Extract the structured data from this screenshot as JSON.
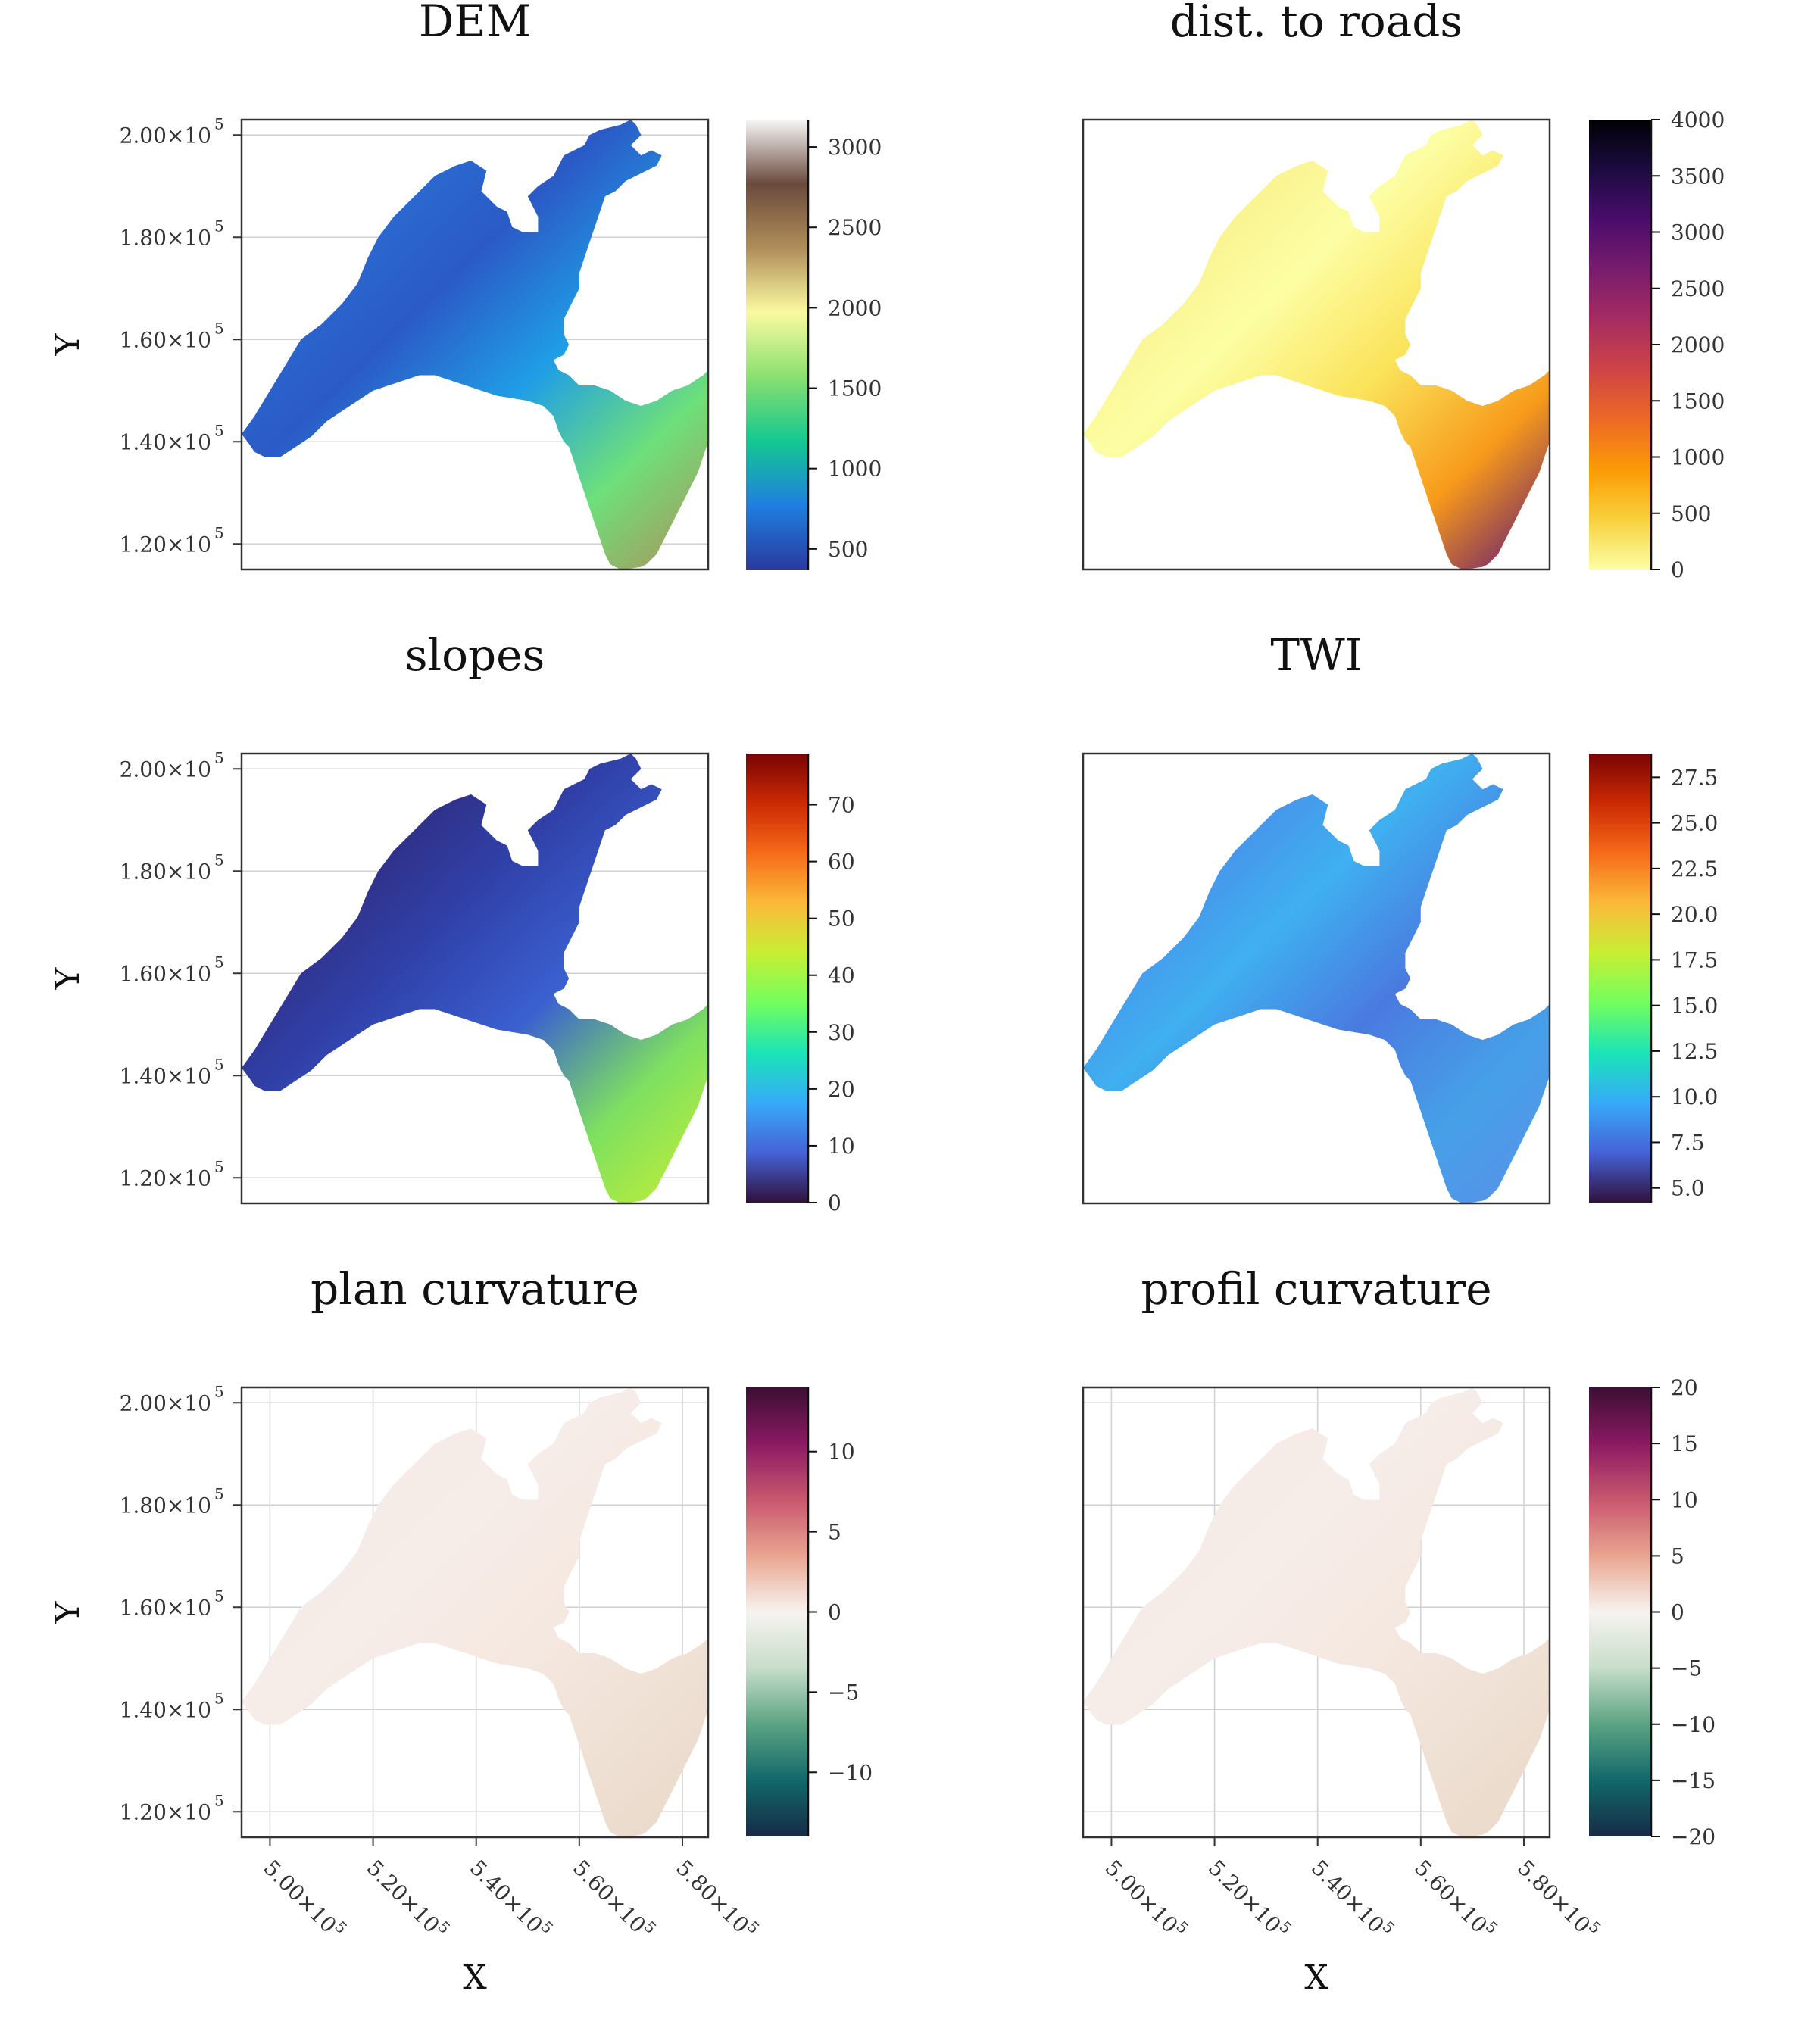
{
  "x_axis": {
    "label": "X",
    "ticks": [
      {
        "value": 500000,
        "label": "5.00×10",
        "exp": "5"
      },
      {
        "value": 520000,
        "label": "5.20×10",
        "exp": "5"
      },
      {
        "value": 540000,
        "label": "5.40×10",
        "exp": "5"
      },
      {
        "value": 560000,
        "label": "5.60×10",
        "exp": "5"
      },
      {
        "value": 580000,
        "label": "5.80×10",
        "exp": "5"
      }
    ],
    "range": [
      494500,
      585000
    ]
  },
  "y_axis": {
    "label": "Y",
    "ticks": [
      {
        "value": 120000,
        "label": "1.20×10",
        "exp": "5"
      },
      {
        "value": 140000,
        "label": "1.40×10",
        "exp": "5"
      },
      {
        "value": 160000,
        "label": "1.60×10",
        "exp": "5"
      },
      {
        "value": 180000,
        "label": "1.80×10",
        "exp": "5"
      },
      {
        "value": 200000,
        "label": "2.00×10",
        "exp": "5"
      }
    ],
    "range": [
      115000,
      203000
    ]
  },
  "chart_data": [
    {
      "type": "heatmap",
      "title": "DEM",
      "colormap": [
        "#2b3a9f",
        "#1f7fe0",
        "#14c890",
        "#8ae070",
        "#fafaa0",
        "#b08e5a",
        "#6a4a3c",
        "#f7f7f7"
      ],
      "colorbar": {
        "range": [
          372,
          3170
        ],
        "ticks": [
          "500",
          "1000",
          "1500",
          "2000",
          "2500",
          "3000"
        ],
        "tick_values": [
          500,
          1000,
          1500,
          2000,
          2500,
          3000
        ]
      },
      "x_ticks_labeled": false,
      "y_ticks_labeled": true,
      "grid": true
    },
    {
      "type": "heatmap",
      "title": "dist. to roads",
      "colormap": [
        "#fcfea4",
        "#f7d13d",
        "#fb9b06",
        "#ed6925",
        "#cf4446",
        "#a52c60",
        "#781c6d",
        "#4a0c6b",
        "#1b0c41",
        "#000004"
      ],
      "colorbar": {
        "range": [
          0,
          4000
        ],
        "ticks": [
          "0",
          "500",
          "1000",
          "1500",
          "2000",
          "2500",
          "3000",
          "3500",
          "4000"
        ],
        "tick_values": [
          0,
          500,
          1000,
          1500,
          2000,
          2500,
          3000,
          3500,
          4000
        ]
      },
      "x_ticks_labeled": false,
      "y_ticks_labeled": false,
      "grid": false
    },
    {
      "type": "heatmap",
      "title": "slopes",
      "colormap": [
        "#30123b",
        "#4662d7",
        "#36aaf9",
        "#1ae4b6",
        "#72fe5e",
        "#c7ef34",
        "#faba39",
        "#f66b19",
        "#cb2a04",
        "#7a0403"
      ],
      "colorbar": {
        "range": [
          0,
          79
        ],
        "ticks": [
          "0",
          "10",
          "20",
          "30",
          "40",
          "50",
          "60",
          "70"
        ],
        "tick_values": [
          0,
          10,
          20,
          30,
          40,
          50,
          60,
          70
        ]
      },
      "x_ticks_labeled": false,
      "y_ticks_labeled": true,
      "grid": true
    },
    {
      "type": "heatmap",
      "title": "TWI",
      "colormap": [
        "#30123b",
        "#4662d7",
        "#36aaf9",
        "#1ae4b6",
        "#72fe5e",
        "#c7ef34",
        "#faba39",
        "#f66b19",
        "#cb2a04",
        "#7a0403"
      ],
      "colorbar": {
        "range": [
          4.2,
          28.8
        ],
        "ticks": [
          "5.0",
          "7.5",
          "10.0",
          "12.5",
          "15.0",
          "17.5",
          "20.0",
          "22.5",
          "25.0",
          "27.5"
        ],
        "tick_values": [
          5,
          7.5,
          10,
          12.5,
          15,
          17.5,
          20,
          22.5,
          25,
          27.5
        ]
      },
      "x_ticks_labeled": false,
      "y_ticks_labeled": false,
      "grid": false
    },
    {
      "type": "heatmap",
      "title": "plan curvature",
      "colormap": [
        "#172b46",
        "#12686b",
        "#5ba383",
        "#c7ddc9",
        "#f7f3f0",
        "#e8a58f",
        "#c8576f",
        "#8b1a63",
        "#3b0f33"
      ],
      "colorbar": {
        "range": [
          -14,
          14
        ],
        "ticks": [
          "−10",
          "−5",
          "0",
          "5",
          "10"
        ],
        "tick_values": [
          -10,
          -5,
          0,
          5,
          10
        ]
      },
      "x_ticks_labeled": true,
      "y_ticks_labeled": true,
      "grid": true
    },
    {
      "type": "heatmap",
      "title": "profil curvature",
      "colormap": [
        "#172b46",
        "#12686b",
        "#5ba383",
        "#c7ddc9",
        "#f7f3f0",
        "#e8a58f",
        "#c8576f",
        "#8b1a63",
        "#3b0f33"
      ],
      "colorbar": {
        "range": [
          -20,
          20
        ],
        "ticks": [
          "−20",
          "−15",
          "−10",
          "−5",
          "0",
          "5",
          "10",
          "15",
          "20"
        ],
        "tick_values": [
          -20,
          -15,
          -10,
          -5,
          0,
          5,
          10,
          15,
          20
        ]
      },
      "x_ticks_labeled": true,
      "y_ticks_labeled": false,
      "grid": true
    }
  ]
}
